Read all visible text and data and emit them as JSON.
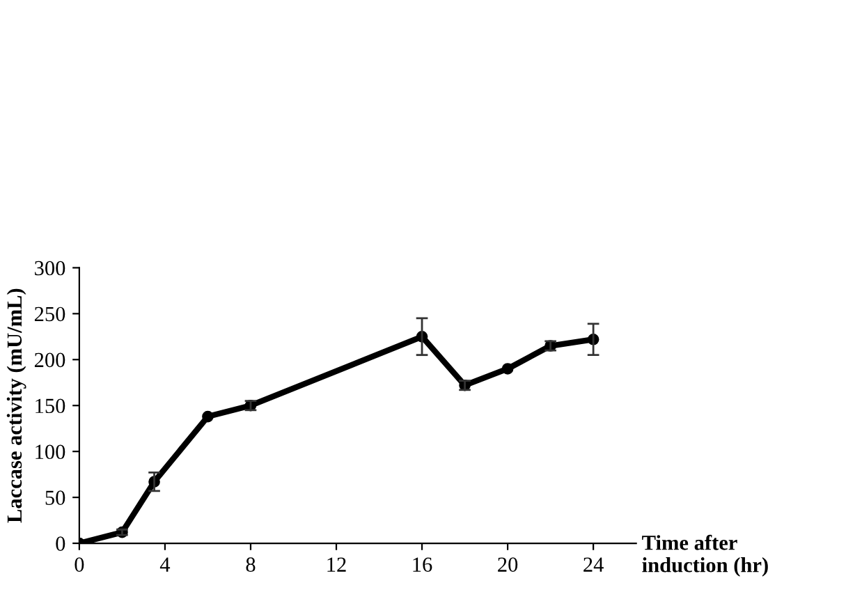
{
  "chart_data": {
    "type": "line",
    "xlabel": "Time after\ninduction (hr)",
    "ylabel": "Laccase activity (mU/mL)",
    "x": [
      0,
      2,
      3.5,
      6,
      8,
      16,
      18,
      20,
      22,
      24
    ],
    "series": [
      {
        "color": "#000000",
        "values": [
          0,
          12,
          67,
          138,
          150,
          225,
          172,
          190,
          215,
          222
        ],
        "errors": [
          null,
          3,
          10,
          null,
          5,
          20,
          5,
          null,
          5,
          17
        ]
      }
    ],
    "xlim": [
      0,
      26
    ],
    "xticks": [
      0,
      4,
      8,
      12,
      16,
      20,
      24
    ],
    "ylim": [
      0,
      300
    ],
    "yticks": [
      0,
      50,
      100,
      150,
      200,
      250,
      300
    ],
    "marker": "circle",
    "line_style": "solid",
    "grid": false,
    "legend": false
  }
}
